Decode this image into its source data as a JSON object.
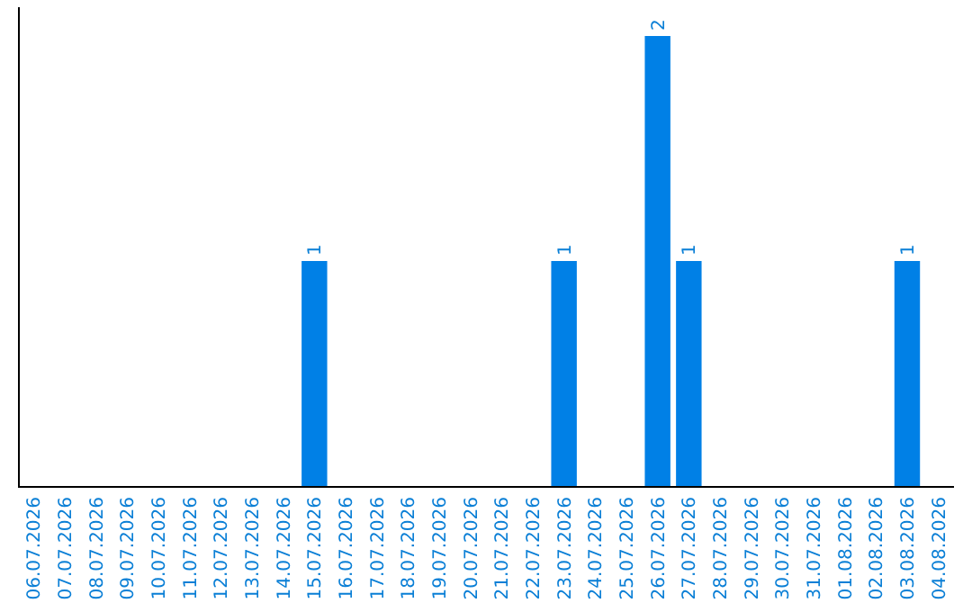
{
  "chart_data": {
    "type": "bar",
    "categories": [
      "06.07.2026",
      "07.07.2026",
      "08.07.2026",
      "09.07.2026",
      "10.07.2026",
      "11.07.2026",
      "12.07.2026",
      "13.07.2026",
      "14.07.2026",
      "15.07.2026",
      "16.07.2026",
      "17.07.2026",
      "18.07.2026",
      "19.07.2026",
      "20.07.2026",
      "21.07.2026",
      "22.07.2026",
      "23.07.2026",
      "24.07.2026",
      "25.07.2026",
      "26.07.2026",
      "27.07.2026",
      "28.07.2026",
      "29.07.2026",
      "30.07.2026",
      "31.07.2026",
      "01.08.2026",
      "02.08.2026",
      "03.08.2026",
      "04.08.2026"
    ],
    "values": [
      0,
      0,
      0,
      0,
      0,
      0,
      0,
      0,
      0,
      1,
      0,
      0,
      0,
      0,
      0,
      0,
      0,
      1,
      0,
      0,
      2,
      1,
      0,
      0,
      0,
      0,
      0,
      0,
      1,
      0
    ],
    "value_labels": [
      null,
      null,
      null,
      null,
      null,
      null,
      null,
      null,
      null,
      "1",
      null,
      null,
      null,
      null,
      null,
      null,
      null,
      "1",
      null,
      null,
      "2",
      "1",
      null,
      null,
      null,
      null,
      null,
      null,
      "1",
      null
    ],
    "color": "#0080e6",
    "ylim": [
      0,
      2
    ],
    "tick_labels": "x"
  }
}
